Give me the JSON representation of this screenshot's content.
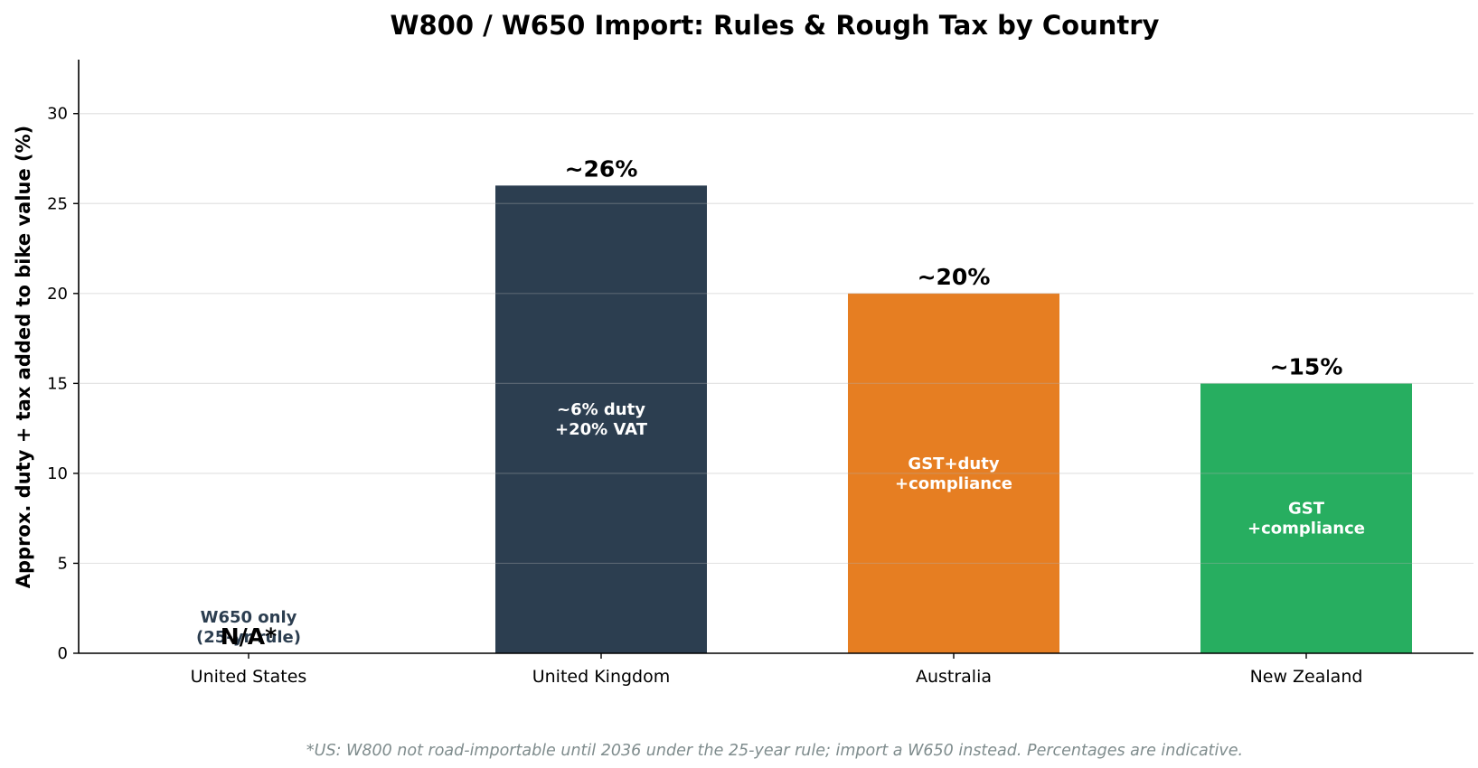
{
  "chart_data": {
    "type": "bar",
    "title": "W800 / W650 Import: Rules & Rough Tax by Country",
    "ylabel": "Approx. duty + tax added to bike value (%)",
    "xlabel": "",
    "ylim": [
      0,
      33
    ],
    "yticks": [
      0,
      5,
      10,
      15,
      20,
      25,
      30
    ],
    "grid": "horizontal",
    "categories": [
      "United States",
      "United Kingdom",
      "Australia",
      "New Zealand"
    ],
    "values": [
      0,
      26,
      20,
      15
    ],
    "colors": [
      "#2c3e50",
      "#2c3e50",
      "#e67e22",
      "#27ae60"
    ],
    "value_labels": [
      "N/A*",
      "~26%",
      "~20%",
      "~15%"
    ],
    "inner_labels": [
      [],
      [
        "~6% duty",
        "+20% VAT"
      ],
      [
        "GST+duty",
        "+compliance"
      ],
      [
        "GST",
        "+compliance"
      ]
    ],
    "us_note": [
      "W650 only",
      "(25-yr rule)"
    ],
    "footnote": "*US: W800 not road-importable until 2036 under the 25-year rule; import a W650 instead. Percentages are indicative."
  }
}
